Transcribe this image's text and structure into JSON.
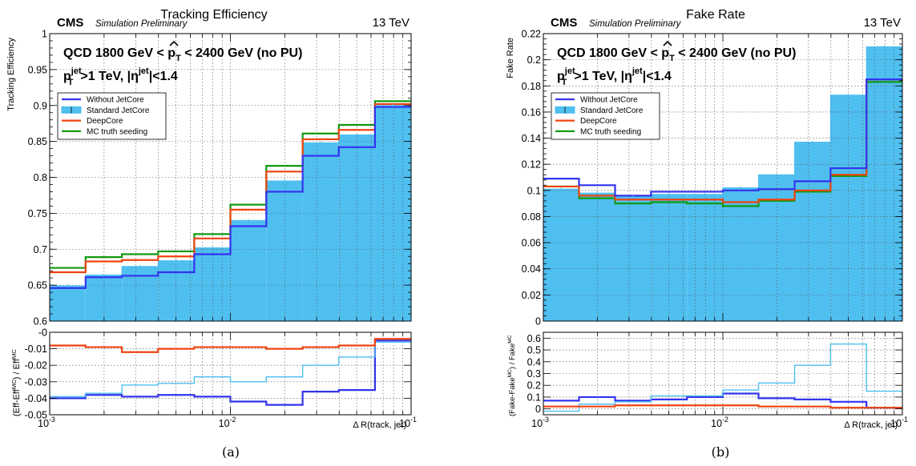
{
  "captions": [
    "(a)",
    "(b)"
  ],
  "chart_data": [
    {
      "type": "line",
      "style": "step-histogram",
      "title": "Tracking Efficiency",
      "experiment": "CMS",
      "status": "Simulation Preliminary",
      "energy": "13 TeV",
      "sample_line": "QCD 1800 GeV < p̂T < 2400 GeV (no PU)",
      "cut_line": "pT jet >1 TeV, |η jet|<1.4",
      "xlabel": "Δ R(track, jet)",
      "ylabel": "Tracking Efficiency",
      "ratio_ylabel": "(Eff-Eff MC) / Eff MC",
      "xscale": "log",
      "xlim": [
        0.001,
        0.1
      ],
      "ylim": [
        0.6,
        1.0
      ],
      "yticks": [
        0.6,
        0.65,
        0.7,
        0.75,
        0.8,
        0.85,
        0.9,
        0.95,
        1.0
      ],
      "ratio_ylim": [
        -0.05,
        0.0
      ],
      "ratio_yticks": [
        -0.05,
        -0.04,
        -0.03,
        -0.02,
        -0.01,
        0.0
      ],
      "xticks": [
        0.001,
        0.01,
        0.1
      ],
      "xtick_labels": [
        [
          "10",
          "-3"
        ],
        [
          "10",
          "-2"
        ],
        [
          "10",
          "-1"
        ]
      ],
      "grid": true,
      "legend_position": "top-left",
      "bin_edges": [
        0.001,
        0.00158,
        0.00251,
        0.00398,
        0.00631,
        0.01,
        0.0158,
        0.0251,
        0.0398,
        0.0631,
        0.1
      ],
      "series": [
        {
          "name": "Without JetCore",
          "color": "#3333ee",
          "values": [
            0.646,
            0.661,
            0.663,
            0.668,
            0.693,
            0.732,
            0.78,
            0.83,
            0.842,
            0.898
          ]
        },
        {
          "name": "Standard JetCore",
          "color": "#4fbff0",
          "filled": true,
          "values": [
            0.649,
            0.664,
            0.676,
            0.684,
            0.702,
            0.74,
            0.795,
            0.848,
            0.859,
            0.9
          ]
        },
        {
          "name": "DeepCore",
          "color": "#ee4411",
          "values": [
            0.668,
            0.683,
            0.685,
            0.69,
            0.715,
            0.755,
            0.808,
            0.853,
            0.866,
            0.902
          ]
        },
        {
          "name": "MC truth seeding",
          "color": "#119911",
          "values": [
            0.674,
            0.689,
            0.693,
            0.697,
            0.721,
            0.762,
            0.816,
            0.861,
            0.873,
            0.906
          ]
        }
      ],
      "ratio_series": [
        {
          "name": "Without JetCore",
          "color": "#3333ee",
          "values": [
            -0.04,
            -0.038,
            -0.039,
            -0.038,
            -0.039,
            -0.042,
            -0.044,
            -0.036,
            -0.035,
            -0.005
          ]
        },
        {
          "name": "Standard JetCore",
          "color": "#4fbff0",
          "values": [
            -0.039,
            -0.037,
            -0.032,
            -0.031,
            -0.027,
            -0.03,
            -0.027,
            -0.02,
            -0.015,
            -0.006
          ]
        },
        {
          "name": "DeepCore",
          "color": "#ee4411",
          "values": [
            -0.008,
            -0.009,
            -0.012,
            -0.01,
            -0.009,
            -0.009,
            -0.01,
            -0.009,
            -0.008,
            -0.004
          ]
        }
      ]
    },
    {
      "type": "line",
      "style": "step-histogram",
      "title": "Fake Rate",
      "experiment": "CMS",
      "status": "Simulation Preliminary",
      "energy": "13 TeV",
      "sample_line": "QCD 1800 GeV < p̂T < 2400 GeV (no PU)",
      "cut_line": "pT jet >1 TeV, |η jet|<1.4",
      "xlabel": "Δ R(track, jet)",
      "ylabel": "Fake Rate",
      "ratio_ylabel": "(Fake-Fake MC) / Fake MC",
      "xscale": "log",
      "xlim": [
        0.001,
        0.1
      ],
      "ylim": [
        0.0,
        0.22
      ],
      "yticks": [
        0.0,
        0.02,
        0.04,
        0.06,
        0.08,
        0.1,
        0.12,
        0.14,
        0.16,
        0.18,
        0.2,
        0.22
      ],
      "ratio_ylim": [
        -0.05,
        0.65
      ],
      "ratio_yticks": [
        0.0,
        0.1,
        0.2,
        0.3,
        0.4,
        0.5,
        0.6
      ],
      "xticks": [
        0.001,
        0.01,
        0.1
      ],
      "xtick_labels": [
        [
          "10",
          "-3"
        ],
        [
          "10",
          "-2"
        ],
        [
          "10",
          "-1"
        ]
      ],
      "grid": true,
      "legend_position": "top-left",
      "bin_edges": [
        0.001,
        0.00158,
        0.00251,
        0.00398,
        0.00631,
        0.01,
        0.0158,
        0.0251,
        0.0398,
        0.0631,
        0.1
      ],
      "series": [
        {
          "name": "Without JetCore",
          "color": "#3333ee",
          "values": [
            0.109,
            0.104,
            0.096,
            0.099,
            0.099,
            0.1,
            0.101,
            0.107,
            0.117,
            0.185
          ]
        },
        {
          "name": "Standard JetCore",
          "color": "#4fbff0",
          "filled": true,
          "values": [
            0.101,
            0.098,
            0.095,
            0.097,
            0.097,
            0.102,
            0.112,
            0.137,
            0.173,
            0.21
          ]
        },
        {
          "name": "DeepCore",
          "color": "#ee4411",
          "values": [
            0.103,
            0.096,
            0.093,
            0.093,
            0.093,
            0.091,
            0.093,
            0.1,
            0.112,
            0.185
          ]
        },
        {
          "name": "MC truth seeding",
          "color": "#119911",
          "values": [
            0.103,
            0.094,
            0.09,
            0.091,
            0.09,
            0.088,
            0.092,
            0.099,
            0.111,
            0.183
          ]
        }
      ],
      "ratio_series": [
        {
          "name": "Without JetCore",
          "color": "#3333ee",
          "values": [
            0.07,
            0.1,
            0.07,
            0.08,
            0.1,
            0.13,
            0.09,
            0.08,
            0.06,
            0.01
          ]
        },
        {
          "name": "Standard JetCore",
          "color": "#4fbff0",
          "values": [
            -0.02,
            0.04,
            0.06,
            0.11,
            0.11,
            0.16,
            0.22,
            0.37,
            0.55,
            0.15
          ]
        },
        {
          "name": "DeepCore",
          "color": "#ee4411",
          "values": [
            0.02,
            0.02,
            0.03,
            0.03,
            0.03,
            0.03,
            0.02,
            0.02,
            0.01,
            0.01
          ]
        }
      ]
    }
  ]
}
